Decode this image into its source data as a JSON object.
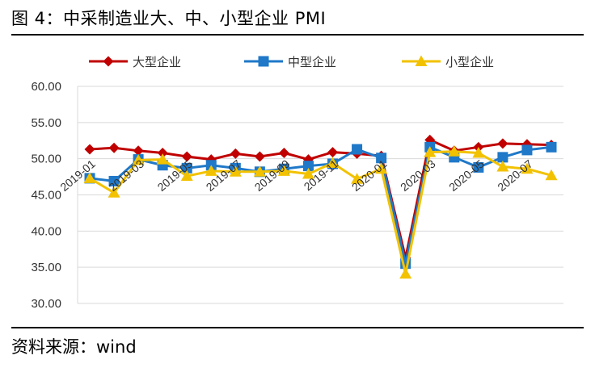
{
  "figure": {
    "title": "图 4：中采制造业大、中、小型企业 PMI",
    "source": "资料来源：wind"
  },
  "chart_data": {
    "type": "line",
    "x": [
      "2019-01",
      "2019-02",
      "2019-03",
      "2019-04",
      "2019-05",
      "2019-06",
      "2019-07",
      "2019-08",
      "2019-09",
      "2019-10",
      "2019-11",
      "2019-12",
      "2020-01",
      "2020-02",
      "2020-03",
      "2020-04",
      "2020-05",
      "2020-06",
      "2020-07",
      "2020-08"
    ],
    "x_tick_labels": [
      "2019-01",
      "2019-03",
      "2019-05",
      "2019-07",
      "2019-09",
      "2019-11",
      "2020-01",
      "2020-03",
      "2020-05",
      "2020-07"
    ],
    "ylim": [
      30,
      60
    ],
    "y_tick_labels": [
      "60.00",
      "55.00",
      "50.00",
      "45.00",
      "40.00",
      "35.00",
      "30.00"
    ],
    "legend_position": "top",
    "grid": "horizontal",
    "series": [
      {
        "name": "大型企业",
        "color": "#c00000",
        "marker": "diamond",
        "values": [
          51.3,
          51.5,
          51.1,
          50.8,
          50.3,
          49.9,
          50.7,
          50.3,
          50.8,
          49.9,
          50.9,
          50.7,
          50.4,
          36.3,
          52.6,
          51.1,
          51.6,
          52.1,
          52.0,
          51.9
        ]
      },
      {
        "name": "中型企业",
        "color": "#1f78c8",
        "marker": "square",
        "values": [
          47.3,
          46.9,
          49.9,
          49.1,
          48.7,
          49.1,
          48.7,
          48.2,
          48.6,
          49.0,
          49.3,
          51.3,
          50.1,
          35.5,
          51.6,
          50.2,
          48.8,
          50.2,
          51.2,
          51.6
        ]
      },
      {
        "name": "小型企业",
        "color": "#f2c200",
        "marker": "triangle",
        "values": [
          47.3,
          45.3,
          49.8,
          49.9,
          47.6,
          48.3,
          48.2,
          48.2,
          48.3,
          47.9,
          49.4,
          47.2,
          48.6,
          34.1,
          50.9,
          51.0,
          50.8,
          48.9,
          48.6,
          47.7
        ]
      }
    ]
  }
}
